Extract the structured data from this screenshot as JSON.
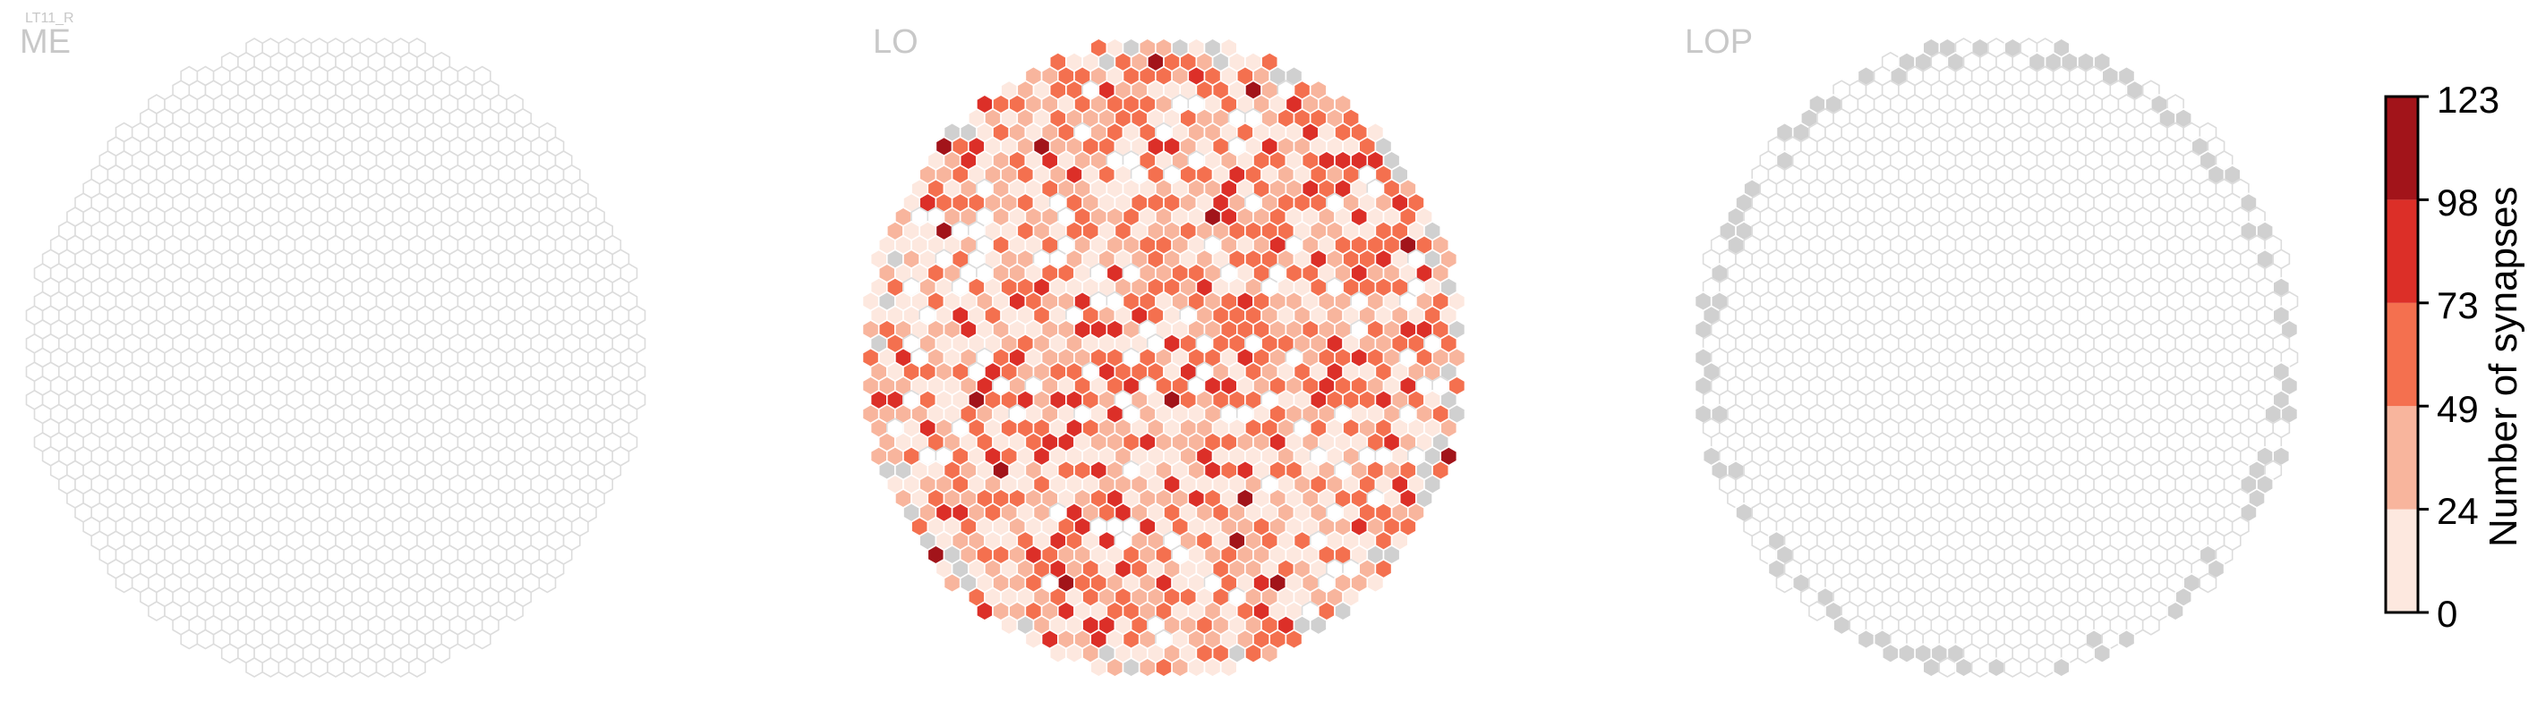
{
  "cell_type": "LT11_R",
  "chart_data": [
    {
      "type": "heatmap",
      "title": "ME",
      "distribution": {
        "zero": 1.0,
        "fill_level": 0,
        "grey": 0.0
      },
      "hex_rows": 35
    },
    {
      "type": "heatmap",
      "title": "LO",
      "distribution": {
        "zero": 0.12,
        "fill_level": 1,
        "grey": 0.04
      },
      "hex_rows": 35
    },
    {
      "type": "heatmap",
      "title": "LOP",
      "distribution": {
        "zero": 0.9,
        "fill_level": 0,
        "grey": 0.1
      },
      "hex_rows": 35
    }
  ],
  "colorbar": {
    "label": "Number of synapses",
    "ticks": [
      "123",
      "98",
      "73",
      "49",
      "24",
      "0"
    ],
    "min": 0,
    "max": 123,
    "colors": [
      "#fde8df",
      "#f8b59d",
      "#f4704f",
      "#dc2f28",
      "#a2141a"
    ]
  },
  "colors": {
    "empty_stroke": "#dcdcdc",
    "grey_fill": "#d0d0d0",
    "title": "#c8c8c8"
  }
}
